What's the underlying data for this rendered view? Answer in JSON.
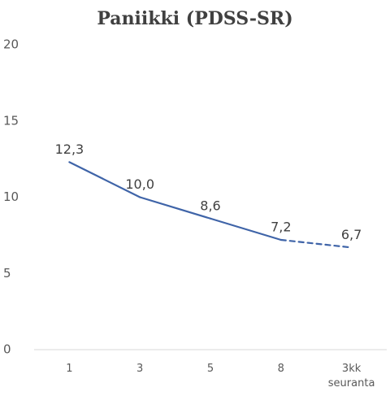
{
  "chart_data": {
    "type": "line",
    "title": "Paniikki (PDSS-SR)",
    "categories": [
      "1",
      "3",
      "5",
      "8",
      "3kk seuranta"
    ],
    "series": [
      {
        "color": "#3f64a8",
        "values": [
          12.3,
          10.0,
          8.6,
          7.2,
          6.7
        ],
        "value_labels": [
          "12,3",
          "10,0",
          "8,6",
          "7,2",
          "6,7"
        ]
      }
    ],
    "dashed_last_segment": true,
    "ylim": [
      0,
      20
    ],
    "yticks": [
      0,
      5,
      10,
      15,
      20
    ],
    "grid": false
  }
}
